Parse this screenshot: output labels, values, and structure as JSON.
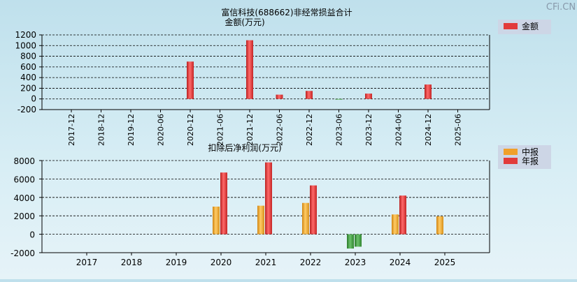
{
  "watermark": "CFi.CN",
  "colors": {
    "red_bar": "#e23b3b",
    "orange_bar": "#f0a02a",
    "green_bar": "#3f9a3f",
    "legend_bg": "#cdd6e6"
  },
  "chart_data": [
    {
      "type": "bar",
      "title": "富信科技(688662)非经常损益合计",
      "ylabel": "金额(万元)",
      "xlabel": "",
      "legend": [
        {
          "name": "金额",
          "color": "#e23b3b"
        }
      ],
      "ylim": [
        -200,
        1200
      ],
      "yticks": [
        -200,
        0,
        200,
        400,
        600,
        800,
        1000,
        1200
      ],
      "categories": [
        "2017-12",
        "2018-12",
        "2019-12",
        "2020-06",
        "2020-12",
        "2021-06",
        "2021-12",
        "2022-06",
        "2022-12",
        "2023-06",
        "2023-12",
        "2024-06",
        "2024-12",
        "2025-06"
      ],
      "series": [
        {
          "name": "金额",
          "values": [
            null,
            null,
            null,
            null,
            700,
            null,
            1100,
            80,
            150,
            -10,
            100,
            null,
            270,
            null
          ]
        }
      ]
    },
    {
      "type": "bar",
      "title": "扣除后净利润(万元)",
      "ylabel": "",
      "xlabel": "",
      "legend": [
        {
          "name": "中报",
          "color": "#f0a02a"
        },
        {
          "name": "年报",
          "color": "#e23b3b"
        }
      ],
      "ylim": [
        -2000,
        8000
      ],
      "yticks": [
        -2000,
        0,
        2000,
        4000,
        6000,
        8000
      ],
      "categories": [
        "2017",
        "2018",
        "2019",
        "2020",
        "2021",
        "2022",
        "2023",
        "2024",
        "2025"
      ],
      "series": [
        {
          "name": "中报",
          "values": [
            null,
            null,
            null,
            3000,
            3100,
            3400,
            -1550,
            2150,
            1950
          ]
        },
        {
          "name": "年报",
          "values": [
            null,
            null,
            null,
            6700,
            7800,
            5300,
            -1350,
            4200,
            null
          ]
        }
      ]
    }
  ]
}
